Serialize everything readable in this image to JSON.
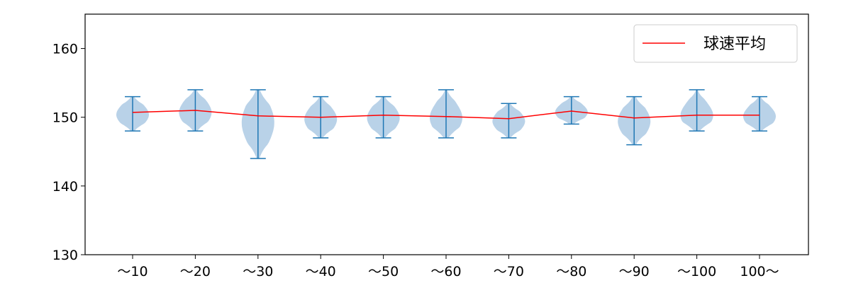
{
  "chart_data": {
    "type": "violin",
    "title": "",
    "xlabel": "",
    "ylabel": "",
    "ylim": [
      130,
      165
    ],
    "yticks": [
      130,
      140,
      150,
      160
    ],
    "grid": false,
    "legend_position": "top-right",
    "categories": [
      "〜10",
      "〜20",
      "〜30",
      "〜40",
      "〜50",
      "〜60",
      "〜70",
      "〜80",
      "〜90",
      "〜100",
      "100〜"
    ],
    "distributions": [
      {
        "min": 148,
        "max": 153,
        "mean": 150.7
      },
      {
        "min": 148,
        "max": 154,
        "mean": 151.0
      },
      {
        "min": 144,
        "max": 154,
        "mean": 150.2
      },
      {
        "min": 147,
        "max": 153,
        "mean": 150.0
      },
      {
        "min": 147,
        "max": 153,
        "mean": 150.3
      },
      {
        "min": 147,
        "max": 154,
        "mean": 150.1
      },
      {
        "min": 147,
        "max": 152,
        "mean": 149.8
      },
      {
        "min": 149,
        "max": 153,
        "mean": 150.9
      },
      {
        "min": 146,
        "max": 153,
        "mean": 149.9
      },
      {
        "min": 148,
        "max": 154,
        "mean": 150.3
      },
      {
        "min": 148,
        "max": 153,
        "mean": 150.3
      }
    ],
    "series": [
      {
        "name": "球速平均",
        "color": "#ff0000",
        "values": [
          150.7,
          151.0,
          150.2,
          150.0,
          150.3,
          150.1,
          149.8,
          150.9,
          149.9,
          150.3,
          150.3
        ]
      }
    ],
    "violin_color": "#b9d2e8",
    "whisker_color": "#1f77b4"
  }
}
